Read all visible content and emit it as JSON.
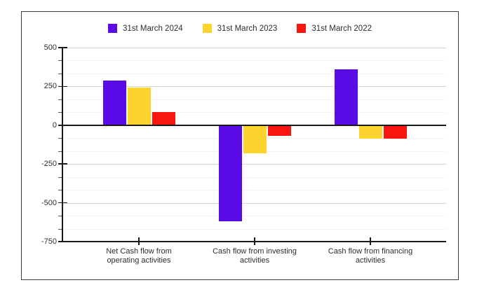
{
  "legend": {
    "items": [
      {
        "label": "31st March 2024",
        "color": "#5b0be8"
      },
      {
        "label": "31st March 2023",
        "color": "#fdd42e"
      },
      {
        "label": "31st March 2022",
        "color": "#f91510"
      }
    ]
  },
  "chart_data": {
    "type": "bar",
    "title": "",
    "categories": [
      "Net Cash flow from operating activities",
      "Cash flow from investing activities",
      "Cash flow from financing activities"
    ],
    "category_label_lines": [
      [
        "Net Cash flow from",
        "operating activities"
      ],
      [
        "Cash flow from investing",
        "activities"
      ],
      [
        "Cash flow from financing",
        "activities"
      ]
    ],
    "series": [
      {
        "name": "31st March 2024",
        "color": "#5b0be8",
        "values": [
          290,
          -620,
          360
        ]
      },
      {
        "name": "31st March 2023",
        "color": "#fdd42e",
        "values": [
          245,
          -180,
          -85
        ]
      },
      {
        "name": "31st March 2022",
        "color": "#f91510",
        "values": [
          85,
          -70,
          -85
        ]
      }
    ],
    "ylim": [
      -750,
      500
    ],
    "y_major_ticks": [
      500,
      250,
      0,
      -250,
      -500,
      -750
    ],
    "y_tick_labels": [
      "500",
      "250",
      "0",
      "-250",
      "-500",
      "-750"
    ],
    "y_minor_divisions": 3,
    "grid": true,
    "legend_position": "top",
    "colors": {
      "axis": "#1a1a1a",
      "grid_major": "#d6d6d6",
      "grid_minor": "#e9e9e9",
      "text": "#2d2d2d",
      "frame_border": "#3d3d3d",
      "background": "#ffffff"
    }
  }
}
